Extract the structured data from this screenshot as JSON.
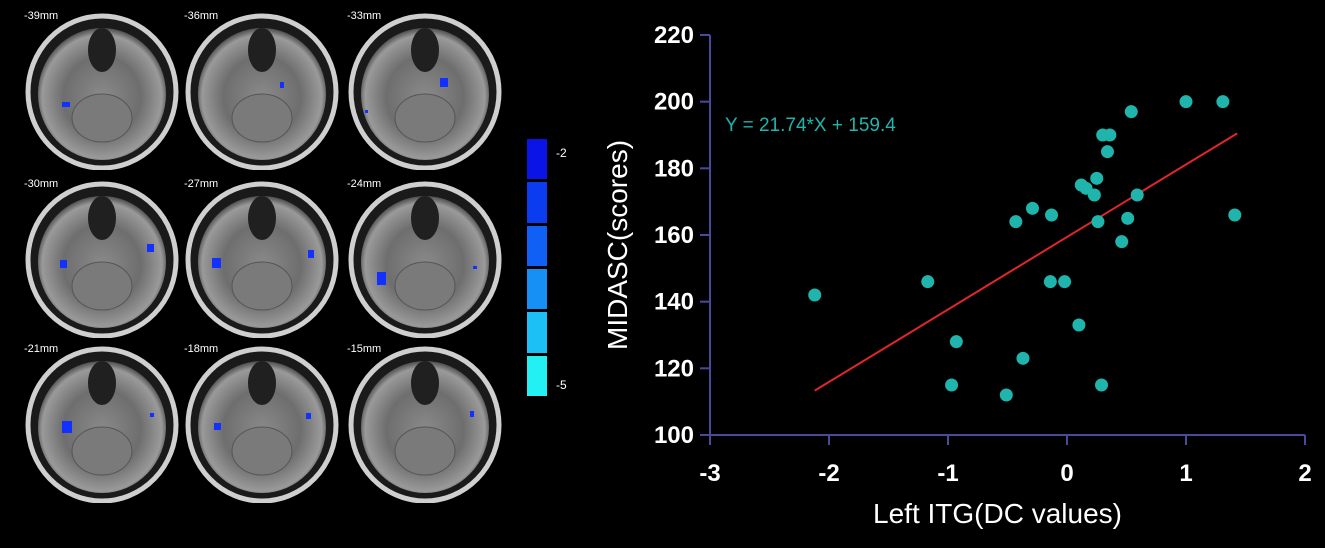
{
  "brain_panel": {
    "slices": [
      {
        "label": "-39mm"
      },
      {
        "label": "-36mm"
      },
      {
        "label": "-33mm"
      },
      {
        "label": "-30mm"
      },
      {
        "label": "-27mm"
      },
      {
        "label": "-24mm"
      },
      {
        "label": "-21mm"
      },
      {
        "label": "-18mm"
      },
      {
        "label": "-15mm"
      }
    ],
    "colorbar": {
      "top_label": "-2",
      "bottom_label": "-5",
      "colors": [
        "#0a14e6",
        "#0b3cf0",
        "#1060f5",
        "#1690f5",
        "#1cc0f5",
        "#22f0f2"
      ]
    }
  },
  "chart_data": {
    "type": "scatter",
    "xlabel": "Left ITG(DC values)",
    "ylabel": "MIDASC(scores)",
    "xlim": [
      -3,
      2
    ],
    "ylim": [
      100,
      220
    ],
    "xticks": [
      -3,
      -2,
      -1,
      0,
      1,
      2
    ],
    "yticks": [
      100,
      120,
      140,
      160,
      180,
      200,
      220
    ],
    "equation": "Y = 21.74*X + 159.4",
    "regression": {
      "slope": 21.74,
      "intercept": 159.4,
      "x_range": [
        -2.12,
        1.43
      ]
    },
    "colors": {
      "points": "#1fb5ad",
      "line": "#e0262b",
      "axes": "#4a4a9a",
      "equation": "#1fb5ad"
    },
    "points": [
      [
        -2.12,
        142
      ],
      [
        -1.17,
        146
      ],
      [
        -0.93,
        128
      ],
      [
        -0.97,
        115
      ],
      [
        -0.51,
        112
      ],
      [
        -0.37,
        123
      ],
      [
        -0.43,
        164
      ],
      [
        -0.29,
        168
      ],
      [
        -0.13,
        166
      ],
      [
        -0.14,
        146
      ],
      [
        -0.02,
        146
      ],
      [
        0.1,
        133
      ],
      [
        0.12,
        175
      ],
      [
        0.16,
        174
      ],
      [
        0.23,
        172
      ],
      [
        0.25,
        177
      ],
      [
        0.26,
        164
      ],
      [
        0.29,
        115
      ],
      [
        0.3,
        190
      ],
      [
        0.34,
        185
      ],
      [
        0.36,
        190
      ],
      [
        0.46,
        158
      ],
      [
        0.51,
        165
      ],
      [
        0.54,
        197
      ],
      [
        0.59,
        172
      ],
      [
        1.0,
        200
      ],
      [
        1.31,
        200
      ],
      [
        1.41,
        166
      ]
    ]
  }
}
